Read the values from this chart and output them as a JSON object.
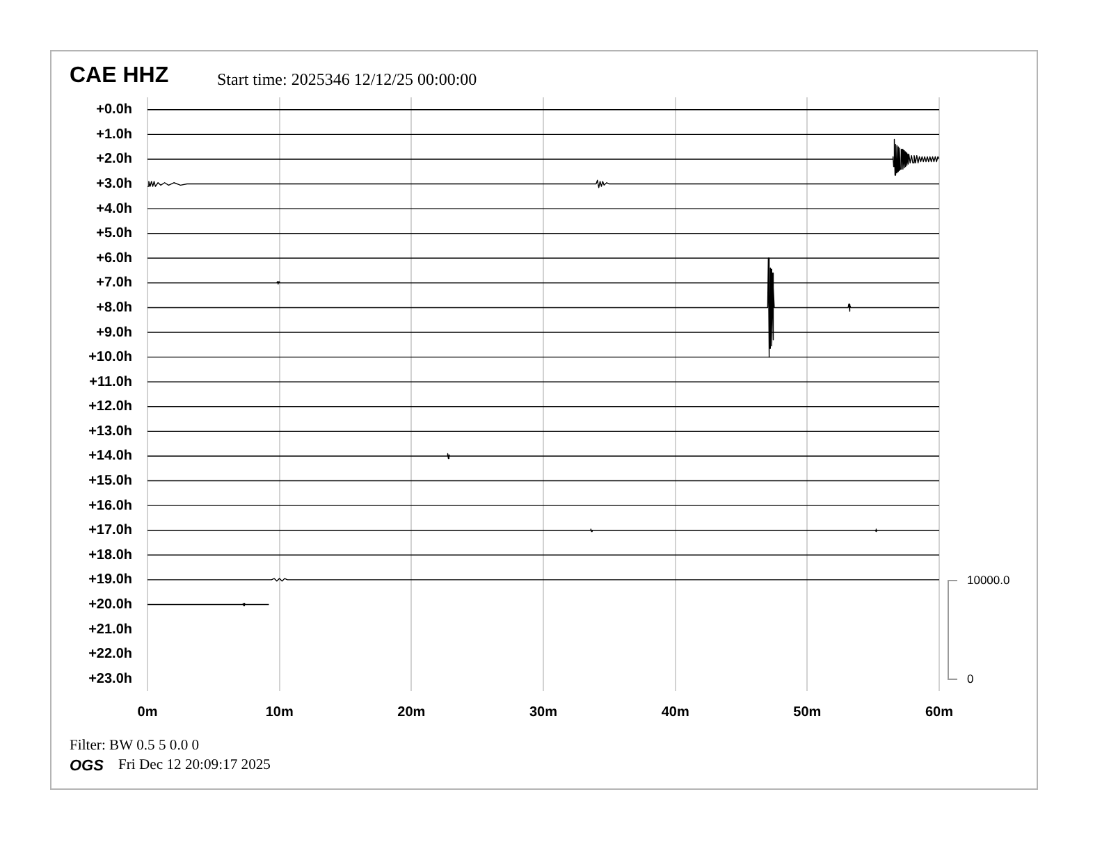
{
  "chart_data": {
    "type": "line",
    "title": "CAE HHZ",
    "subtitle": "Start time: 2025346 12/12/25 00:00:00",
    "annotations": [
      "10000.0",
      "0",
      "Filter: BW 0.5 5 0.0 0",
      "OGS",
      "Fri Dec 12 20:09:17 2025"
    ],
    "xlim": [
      0,
      60
    ],
    "xticks": [
      {
        "value": 0,
        "label": "0m"
      },
      {
        "value": 10,
        "label": "10m"
      },
      {
        "value": 20,
        "label": "20m"
      },
      {
        "value": 30,
        "label": "30m"
      },
      {
        "value": 40,
        "label": "40m"
      },
      {
        "value": 50,
        "label": "50m"
      },
      {
        "value": 60,
        "label": "60m"
      }
    ],
    "ylim": [
      23.5,
      -0.5
    ],
    "yticks": [
      {
        "value": 0,
        "label": "+0.0h"
      },
      {
        "value": 1,
        "label": "+1.0h"
      },
      {
        "value": 2,
        "label": "+2.0h"
      },
      {
        "value": 3,
        "label": "+3.0h"
      },
      {
        "value": 4,
        "label": "+4.0h"
      },
      {
        "value": 5,
        "label": "+5.0h"
      },
      {
        "value": 6,
        "label": "+6.0h"
      },
      {
        "value": 7,
        "label": "+7.0h"
      },
      {
        "value": 8,
        "label": "+8.0h"
      },
      {
        "value": 9,
        "label": "+9.0h"
      },
      {
        "value": 10,
        "label": "+10.0h"
      },
      {
        "value": 11,
        "label": "+11.0h"
      },
      {
        "value": 12,
        "label": "+12.0h"
      },
      {
        "value": 13,
        "label": "+13.0h"
      },
      {
        "value": 14,
        "label": "+14.0h"
      },
      {
        "value": 15,
        "label": "+15.0h"
      },
      {
        "value": 16,
        "label": "+16.0h"
      },
      {
        "value": 17,
        "label": "+17.0h"
      },
      {
        "value": 18,
        "label": "+18.0h"
      },
      {
        "value": 19,
        "label": "+19.0h"
      },
      {
        "value": 20,
        "label": "+20.0h"
      },
      {
        "value": 21,
        "label": "+21.0h"
      },
      {
        "value": 22,
        "label": "+22.0h"
      },
      {
        "value": 23,
        "label": "+23.0h"
      }
    ],
    "grid": "x",
    "marker": "none",
    "line_style": "solid",
    "series": [
      {
        "color": "#000000",
        "x": [
          0,
          60
        ],
        "values": [
          0,
          0
        ]
      },
      {
        "color": "#000000",
        "x": [
          0,
          60
        ],
        "values": [
          1,
          1
        ]
      },
      {
        "color": "#000000",
        "x": [
          0,
          56.45,
          56.5,
          56.55,
          56.6,
          56.65,
          56.7,
          56.75,
          56.8,
          56.85,
          56.9,
          56.95,
          57.0,
          57.05,
          57.1,
          57.15,
          57.2,
          57.25,
          57.3,
          57.35,
          57.4,
          57.45,
          57.5,
          57.55,
          57.6,
          57.65,
          57.7,
          57.8,
          57.9,
          58.0,
          58.1,
          58.2,
          58.3,
          58.4,
          58.5,
          58.6,
          58.7,
          58.8,
          58.9,
          59.0,
          59.1,
          59.2,
          59.3,
          59.4,
          59.5,
          59.6,
          59.7,
          59.8,
          59.9,
          60
        ],
        "values": [
          2,
          2,
          1.9,
          2.3,
          1.2,
          2.65,
          1.4,
          2.55,
          1.45,
          2.5,
          1.5,
          2.45,
          1.55,
          2.4,
          1.6,
          2.4,
          1.6,
          2.4,
          1.65,
          2.35,
          1.7,
          2.3,
          1.75,
          2.25,
          1.8,
          2.2,
          1.8,
          2.15,
          1.85,
          2.15,
          1.85,
          2.15,
          1.85,
          2.15,
          1.9,
          2.1,
          1.9,
          2.1,
          1.9,
          2.1,
          1.9,
          2.1,
          1.9,
          2.1,
          1.9,
          2.1,
          1.9,
          2.1,
          1.9,
          2
        ]
      },
      {
        "color": "#000000",
        "x": [
          0,
          0.1,
          0.2,
          0.3,
          0.4,
          0.5,
          0.6,
          0.8,
          1.0,
          1.3,
          1.6,
          2.0,
          2.5,
          3.0,
          34.0,
          34.1,
          34.2,
          34.3,
          34.4,
          34.5,
          34.6,
          34.8,
          35.0,
          60
        ],
        "values": [
          3.1,
          2.9,
          3.1,
          2.9,
          3.1,
          2.9,
          3.1,
          2.95,
          3.05,
          2.95,
          3.05,
          2.95,
          3.05,
          3,
          3,
          2.85,
          3.15,
          2.9,
          3.1,
          2.9,
          3.05,
          2.95,
          3,
          3
        ]
      },
      {
        "color": "#000000",
        "x": [
          0,
          60
        ],
        "values": [
          4,
          4
        ]
      },
      {
        "color": "#000000",
        "x": [
          0,
          60
        ],
        "values": [
          5,
          5
        ]
      },
      {
        "color": "#000000",
        "x": [
          0,
          60
        ],
        "values": [
          6,
          6
        ]
      },
      {
        "color": "#000000",
        "x": [
          0,
          9.8,
          9.85,
          9.9,
          9.95,
          10.0,
          60
        ],
        "values": [
          7,
          7,
          6.95,
          7.05,
          6.95,
          7,
          7
        ]
      },
      {
        "color": "#000000",
        "x": [
          0,
          47.0,
          47.05,
          47.1,
          47.13,
          47.16,
          47.19,
          47.22,
          47.25,
          47.28,
          47.31,
          47.34,
          47.37,
          47.4,
          47.45,
          47.5,
          53.1,
          53.15,
          53.2,
          53.25,
          53.3,
          60
        ],
        "values": [
          8,
          8,
          6.0,
          10.0,
          6.4,
          9.65,
          6.4,
          9.6,
          6.45,
          9.55,
          6.5,
          9.5,
          6.6,
          9.3,
          7.2,
          8,
          8,
          7.85,
          8.15,
          7.9,
          8,
          8
        ]
      },
      {
        "color": "#000000",
        "x": [
          0,
          60
        ],
        "values": [
          9,
          9
        ]
      },
      {
        "color": "#000000",
        "x": [
          0,
          60
        ],
        "values": [
          10,
          10
        ]
      },
      {
        "color": "#000000",
        "x": [
          0,
          60
        ],
        "values": [
          11,
          11
        ]
      },
      {
        "color": "#000000",
        "x": [
          0,
          60
        ],
        "values": [
          12,
          12
        ]
      },
      {
        "color": "#000000",
        "x": [
          0,
          60
        ],
        "values": [
          13,
          13
        ]
      },
      {
        "color": "#000000",
        "x": [
          0,
          22.7,
          22.75,
          22.8,
          22.85,
          22.9,
          60
        ],
        "values": [
          14,
          14,
          13.9,
          14.1,
          13.95,
          14,
          14
        ]
      },
      {
        "color": "#000000",
        "x": [
          0,
          60
        ],
        "values": [
          15,
          15
        ]
      },
      {
        "color": "#000000",
        "x": [
          0,
          60
        ],
        "values": [
          16,
          16
        ]
      },
      {
        "color": "#000000",
        "x": [
          0,
          33.55,
          33.6,
          33.65,
          33.7,
          55.15,
          55.2,
          55.25,
          55.3,
          60
        ],
        "values": [
          17,
          17,
          16.95,
          17.05,
          17,
          17,
          16.95,
          17.05,
          17,
          17
        ]
      },
      {
        "color": "#000000",
        "x": [
          0,
          60
        ],
        "values": [
          18,
          18
        ]
      },
      {
        "color": "#000000",
        "x": [
          0,
          9.4,
          9.6,
          9.8,
          10.0,
          10.2,
          10.4,
          10.6,
          60
        ],
        "values": [
          19,
          19,
          18.95,
          19.05,
          18.95,
          19.05,
          18.95,
          19,
          19
        ]
      },
      {
        "color": "#000000",
        "x": [
          0,
          7.2,
          7.25,
          7.3,
          7.35,
          7.4,
          9.2
        ],
        "values": [
          20,
          20,
          19.95,
          20.05,
          19.95,
          20,
          20
        ]
      }
    ]
  }
}
